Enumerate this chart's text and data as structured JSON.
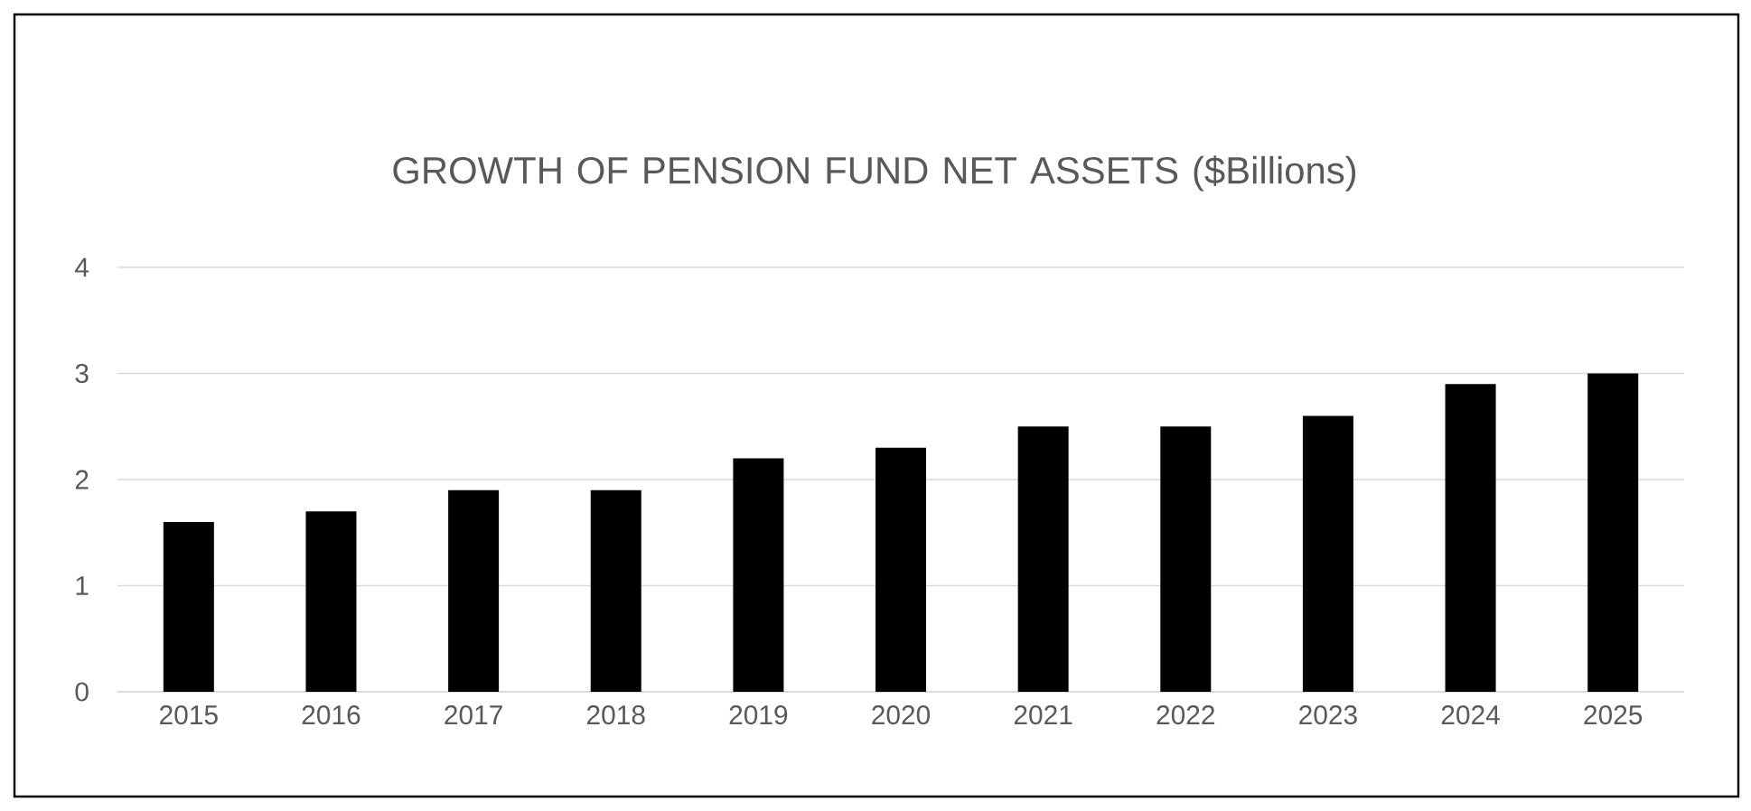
{
  "chart_data": {
    "type": "bar",
    "title": "GROWTH OF PENSION FUND NET ASSETS ($Billions)",
    "categories": [
      "2015",
      "2016",
      "2017",
      "2018",
      "2019",
      "2020",
      "2021",
      "2022",
      "2023",
      "2024",
      "2025"
    ],
    "values": [
      1.6,
      1.7,
      1.9,
      1.9,
      2.2,
      2.3,
      2.5,
      2.5,
      2.6,
      2.9,
      3.0
    ],
    "color": "#000000",
    "ylim": [
      0,
      4
    ],
    "yticks": [
      0,
      1,
      2,
      3,
      4
    ],
    "grid": "y"
  }
}
